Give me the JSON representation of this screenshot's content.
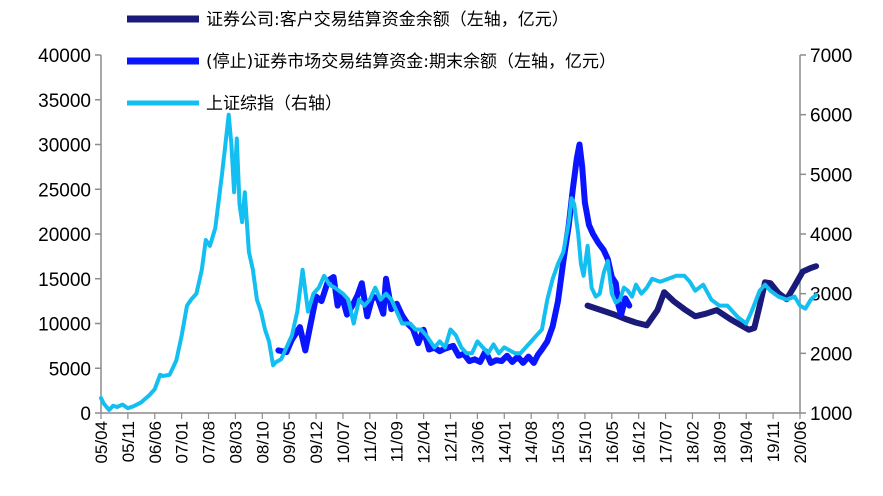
{
  "chart_data": {
    "type": "line",
    "title": "",
    "colors": {
      "series1": "#1a1a7a",
      "series2": "#0a14ff",
      "series3": "#12bff0",
      "axis": "#8c8c8c"
    },
    "left_axis": {
      "ylim": [
        0,
        40000
      ],
      "ticks": [
        "0",
        "5000",
        "10000",
        "15000",
        "20000",
        "25000",
        "30000",
        "35000",
        "40000"
      ]
    },
    "right_axis": {
      "ylim": [
        1000,
        7000
      ],
      "ticks": [
        "1000",
        "2000",
        "3000",
        "4000",
        "5000",
        "6000",
        "7000"
      ]
    },
    "x_ticks": [
      "05/04",
      "05/11",
      "06/06",
      "07/01",
      "07/08",
      "08/03",
      "08/10",
      "09/05",
      "09/12",
      "10/07",
      "11/02",
      "11/09",
      "12/04",
      "12/11",
      "13/06",
      "14/01",
      "14/08",
      "15/03",
      "15/10",
      "16/05",
      "16/12",
      "17/07",
      "18/02",
      "18/09",
      "19/04",
      "19/11",
      "20/06"
    ],
    "x_range": [
      0,
      26
    ],
    "series": [
      {
        "name": "证券公司:客户交易结算资金余额（左轴，亿元）",
        "axis": "left",
        "points": [
          [
            18.1,
            12000
          ],
          [
            18.6,
            11500
          ],
          [
            19.1,
            11000
          ],
          [
            19.5,
            10500
          ],
          [
            19.9,
            10100
          ],
          [
            20.3,
            9800
          ],
          [
            20.7,
            11500
          ],
          [
            20.95,
            13500
          ],
          [
            21.3,
            12500
          ],
          [
            21.7,
            11600
          ],
          [
            22.1,
            10800
          ],
          [
            22.5,
            11100
          ],
          [
            22.9,
            11500
          ],
          [
            23.4,
            10500
          ],
          [
            23.8,
            9800
          ],
          [
            24.1,
            9300
          ],
          [
            24.3,
            9500
          ],
          [
            24.5,
            12000
          ],
          [
            24.7,
            14600
          ],
          [
            24.9,
            14500
          ],
          [
            25.2,
            13400
          ],
          [
            25.5,
            12700
          ],
          [
            25.8,
            14200
          ],
          [
            26.1,
            15800
          ],
          [
            26.4,
            16200
          ],
          [
            26.6,
            16400
          ]
        ]
      },
      {
        "name": "(停止)证券市场交易结算资金:期末余额（左轴，亿元）",
        "axis": "left",
        "points": [
          [
            6.6,
            7000
          ],
          [
            6.9,
            6800
          ],
          [
            7.1,
            8200
          ],
          [
            7.4,
            9600
          ],
          [
            7.6,
            7000
          ],
          [
            7.8,
            10000
          ],
          [
            8.0,
            13000
          ],
          [
            8.2,
            12500
          ],
          [
            8.45,
            14800
          ],
          [
            8.65,
            15200
          ],
          [
            8.8,
            12000
          ],
          [
            8.95,
            13200
          ],
          [
            9.15,
            11000
          ],
          [
            9.35,
            12000
          ],
          [
            9.55,
            13200
          ],
          [
            9.7,
            14500
          ],
          [
            9.9,
            10800
          ],
          [
            10.1,
            13000
          ],
          [
            10.3,
            12800
          ],
          [
            10.5,
            11100
          ],
          [
            10.6,
            15000
          ],
          [
            10.8,
            11600
          ],
          [
            11.0,
            12200
          ],
          [
            11.2,
            10900
          ],
          [
            11.4,
            10000
          ],
          [
            11.6,
            9400
          ],
          [
            11.8,
            7800
          ],
          [
            12.0,
            9300
          ],
          [
            12.2,
            7100
          ],
          [
            12.4,
            7300
          ],
          [
            12.6,
            6900
          ],
          [
            12.8,
            7200
          ],
          [
            13.1,
            7500
          ],
          [
            13.3,
            6400
          ],
          [
            13.5,
            6600
          ],
          [
            13.7,
            5800
          ],
          [
            13.9,
            6000
          ],
          [
            14.1,
            5700
          ],
          [
            14.3,
            6900
          ],
          [
            14.5,
            5600
          ],
          [
            14.7,
            5900
          ],
          [
            14.9,
            5800
          ],
          [
            15.1,
            6400
          ],
          [
            15.3,
            5700
          ],
          [
            15.5,
            6300
          ],
          [
            15.7,
            5600
          ],
          [
            15.9,
            6300
          ],
          [
            16.1,
            5600
          ],
          [
            16.25,
            6500
          ],
          [
            16.4,
            7100
          ],
          [
            16.6,
            8000
          ],
          [
            16.8,
            9700
          ],
          [
            17.0,
            12500
          ],
          [
            17.2,
            17000
          ],
          [
            17.4,
            21000
          ],
          [
            17.55,
            25000
          ],
          [
            17.7,
            28500
          ],
          [
            17.8,
            30000
          ],
          [
            17.9,
            27500
          ],
          [
            18.0,
            23500
          ],
          [
            18.15,
            21000
          ],
          [
            18.3,
            20000
          ],
          [
            18.5,
            19000
          ],
          [
            18.7,
            18200
          ],
          [
            18.85,
            17200
          ],
          [
            19.0,
            15200
          ],
          [
            19.15,
            14500
          ],
          [
            19.25,
            12000
          ],
          [
            19.35,
            11000
          ],
          [
            19.5,
            12800
          ],
          [
            19.65,
            12000
          ]
        ]
      },
      {
        "name": "上证综指（右轴）",
        "axis": "right",
        "points": [
          [
            0.0,
            1250
          ],
          [
            0.1,
            1160
          ],
          [
            0.3,
            1050
          ],
          [
            0.45,
            1120
          ],
          [
            0.6,
            1100
          ],
          [
            0.8,
            1140
          ],
          [
            1.0,
            1080
          ],
          [
            1.2,
            1110
          ],
          [
            1.5,
            1180
          ],
          [
            1.8,
            1300
          ],
          [
            2.0,
            1400
          ],
          [
            2.2,
            1640
          ],
          [
            2.3,
            1620
          ],
          [
            2.55,
            1640
          ],
          [
            2.8,
            1880
          ],
          [
            3.0,
            2300
          ],
          [
            3.2,
            2800
          ],
          [
            3.35,
            2900
          ],
          [
            3.55,
            3000
          ],
          [
            3.75,
            3400
          ],
          [
            3.9,
            3900
          ],
          [
            4.05,
            3800
          ],
          [
            4.25,
            4100
          ],
          [
            4.5,
            5000
          ],
          [
            4.6,
            5400
          ],
          [
            4.75,
            6000
          ],
          [
            4.85,
            5500
          ],
          [
            4.95,
            4700
          ],
          [
            5.05,
            5600
          ],
          [
            5.15,
            4500
          ],
          [
            5.25,
            4200
          ],
          [
            5.35,
            4700
          ],
          [
            5.5,
            3700
          ],
          [
            5.65,
            3400
          ],
          [
            5.8,
            2900
          ],
          [
            5.95,
            2700
          ],
          [
            6.1,
            2400
          ],
          [
            6.25,
            2200
          ],
          [
            6.4,
            1800
          ],
          [
            6.5,
            1850
          ],
          [
            6.7,
            1900
          ],
          [
            6.9,
            2100
          ],
          [
            7.1,
            2300
          ],
          [
            7.3,
            2700
          ],
          [
            7.5,
            3400
          ],
          [
            7.7,
            2700
          ],
          [
            7.9,
            3000
          ],
          [
            8.1,
            3100
          ],
          [
            8.3,
            3300
          ],
          [
            8.5,
            3150
          ],
          [
            8.7,
            3100
          ],
          [
            9.0,
            3000
          ],
          [
            9.2,
            2900
          ],
          [
            9.4,
            2500
          ],
          [
            9.6,
            2900
          ],
          [
            9.8,
            2800
          ],
          [
            10.0,
            2900
          ],
          [
            10.2,
            3100
          ],
          [
            10.4,
            2900
          ],
          [
            10.6,
            3000
          ],
          [
            10.8,
            2900
          ],
          [
            11.0,
            2700
          ],
          [
            11.2,
            2500
          ],
          [
            11.5,
            2500
          ],
          [
            11.7,
            2400
          ],
          [
            11.9,
            2400
          ],
          [
            12.1,
            2300
          ],
          [
            12.4,
            2100
          ],
          [
            12.6,
            2200
          ],
          [
            12.8,
            2100
          ],
          [
            13.0,
            2400
          ],
          [
            13.2,
            2300
          ],
          [
            13.4,
            2100
          ],
          [
            13.6,
            2000
          ],
          [
            13.8,
            2000
          ],
          [
            14.0,
            2200
          ],
          [
            14.2,
            2100
          ],
          [
            14.4,
            2000
          ],
          [
            14.6,
            2150
          ],
          [
            14.8,
            2000
          ],
          [
            15.0,
            2100
          ],
          [
            15.2,
            2050
          ],
          [
            15.4,
            2000
          ],
          [
            15.6,
            2000
          ],
          [
            15.8,
            2100
          ],
          [
            16.0,
            2200
          ],
          [
            16.2,
            2300
          ],
          [
            16.4,
            2400
          ],
          [
            16.6,
            2900
          ],
          [
            16.8,
            3250
          ],
          [
            17.0,
            3500
          ],
          [
            17.2,
            3700
          ],
          [
            17.4,
            4200
          ],
          [
            17.5,
            4600
          ],
          [
            17.6,
            4500
          ],
          [
            17.75,
            4000
          ],
          [
            17.85,
            3500
          ],
          [
            17.95,
            3300
          ],
          [
            18.1,
            3800
          ],
          [
            18.25,
            3100
          ],
          [
            18.4,
            2950
          ],
          [
            18.55,
            3000
          ],
          [
            18.7,
            3350
          ],
          [
            18.85,
            3550
          ],
          [
            19.0,
            3000
          ],
          [
            19.15,
            2850
          ],
          [
            19.3,
            2900
          ],
          [
            19.45,
            3100
          ],
          [
            19.6,
            3050
          ],
          [
            19.75,
            2950
          ],
          [
            19.9,
            3150
          ],
          [
            20.1,
            3000
          ],
          [
            20.3,
            3100
          ],
          [
            20.5,
            3250
          ],
          [
            20.8,
            3200
          ],
          [
            21.1,
            3250
          ],
          [
            21.4,
            3300
          ],
          [
            21.7,
            3300
          ],
          [
            21.9,
            3200
          ],
          [
            22.1,
            3050
          ],
          [
            22.4,
            3150
          ],
          [
            22.7,
            2900
          ],
          [
            23.0,
            2800
          ],
          [
            23.3,
            2800
          ],
          [
            23.5,
            2700
          ],
          [
            23.7,
            2600
          ],
          [
            24.0,
            2500
          ],
          [
            24.2,
            2700
          ],
          [
            24.5,
            3050
          ],
          [
            24.7,
            3150
          ],
          [
            24.9,
            3050
          ],
          [
            25.2,
            2950
          ],
          [
            25.5,
            2900
          ],
          [
            25.8,
            2950
          ],
          [
            26.0,
            2800
          ],
          [
            26.2,
            2750
          ],
          [
            26.4,
            2900
          ],
          [
            26.6,
            2980
          ]
        ]
      }
    ]
  }
}
